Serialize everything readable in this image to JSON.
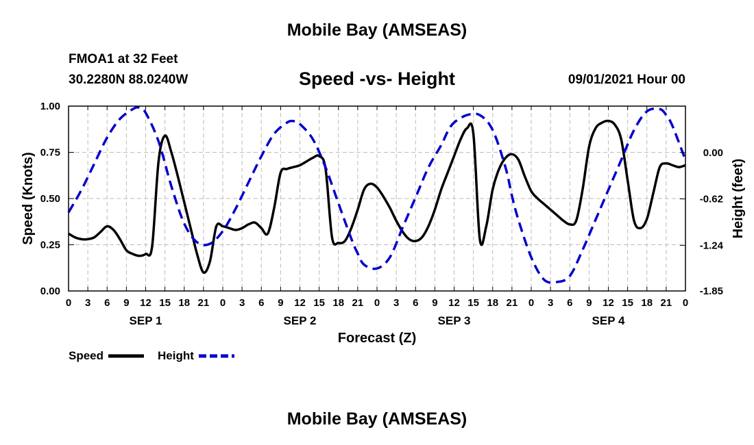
{
  "page": {
    "title_top": "Mobile Bay (AMSEAS)",
    "title_bottom": "Mobile Bay (AMSEAS)",
    "station": "FMOA1 at 32 Feet",
    "coordinates": "30.2280N  88.0240W",
    "datetime": "09/01/2021 Hour 00"
  },
  "chart_data": {
    "type": "line",
    "title": "Speed -vs- Height",
    "xlabel": "Forecast (Z)",
    "ylabel_left": "Speed (Knots)",
    "ylabel_right": "Height (feet)",
    "x_unit": "hours from 09/01/2021 00Z",
    "xlim": [
      0,
      96
    ],
    "ylim_left": [
      0,
      1
    ],
    "ylim_right": [
      -1.85,
      0.62
    ],
    "left_ticks": [
      "0.00",
      "0.25",
      "0.50",
      "0.75",
      "1.00"
    ],
    "left_tick_values": [
      0,
      0.25,
      0.5,
      0.75,
      1.0
    ],
    "right_ticks": [
      "0.00",
      "-0.62",
      "-1.24",
      "-1.85"
    ],
    "right_tick_values": [
      0.0,
      -0.62,
      -1.24,
      -1.85
    ],
    "x_tick_labels": [
      "0",
      "3",
      "6",
      "9",
      "12",
      "15",
      "18",
      "21",
      "0",
      "3",
      "6",
      "9",
      "12",
      "15",
      "18",
      "21",
      "0",
      "3",
      "6",
      "9",
      "12",
      "15",
      "18",
      "21",
      "0",
      "3",
      "6",
      "9",
      "12",
      "15",
      "18",
      "21",
      "0"
    ],
    "day_labels": [
      {
        "label": "SEP 1",
        "x": 12
      },
      {
        "label": "SEP 2",
        "x": 36
      },
      {
        "label": "SEP 3",
        "x": 60
      },
      {
        "label": "SEP 4",
        "x": 84
      }
    ],
    "grid": true,
    "legend": [
      {
        "name": "Speed",
        "color": "#000000",
        "style": "solid"
      },
      {
        "name": "Height",
        "color": "#0000cc",
        "style": "dashed"
      }
    ],
    "series": [
      {
        "name": "Speed",
        "axis": "left",
        "color": "#000000",
        "x": [
          0,
          1,
          2,
          3,
          4,
          5,
          6,
          7,
          8,
          9,
          10,
          11,
          12,
          13,
          14,
          15,
          16,
          17,
          18,
          19,
          20,
          21,
          22,
          23,
          24,
          25,
          26,
          27,
          28,
          29,
          30,
          31,
          32,
          33,
          34,
          35,
          36,
          37,
          38,
          39,
          40,
          41,
          42,
          43,
          44,
          45,
          46,
          47,
          48,
          49,
          50,
          51,
          52,
          53,
          54,
          55,
          56,
          57,
          58,
          59,
          60,
          61,
          62,
          63,
          64,
          65,
          66,
          67,
          68,
          69,
          70,
          71,
          72,
          73,
          74,
          75,
          76,
          77,
          78,
          79,
          80,
          81,
          82,
          83,
          84,
          85,
          86,
          87,
          88,
          89,
          90,
          91,
          92,
          93,
          94,
          95,
          96
        ],
        "y": [
          0.31,
          0.29,
          0.28,
          0.28,
          0.29,
          0.32,
          0.35,
          0.33,
          0.28,
          0.22,
          0.2,
          0.19,
          0.2,
          0.24,
          0.7,
          0.84,
          0.75,
          0.62,
          0.48,
          0.34,
          0.2,
          0.1,
          0.16,
          0.35,
          0.35,
          0.34,
          0.33,
          0.34,
          0.36,
          0.37,
          0.34,
          0.31,
          0.45,
          0.64,
          0.66,
          0.67,
          0.68,
          0.7,
          0.72,
          0.73,
          0.66,
          0.29,
          0.26,
          0.27,
          0.34,
          0.44,
          0.55,
          0.58,
          0.56,
          0.51,
          0.45,
          0.38,
          0.32,
          0.28,
          0.27,
          0.29,
          0.35,
          0.44,
          0.55,
          0.64,
          0.73,
          0.82,
          0.88,
          0.85,
          0.28,
          0.35,
          0.55,
          0.66,
          0.72,
          0.74,
          0.71,
          0.62,
          0.54,
          0.5,
          0.47,
          0.44,
          0.41,
          0.38,
          0.36,
          0.38,
          0.55,
          0.78,
          0.88,
          0.91,
          0.92,
          0.9,
          0.82,
          0.6,
          0.38,
          0.34,
          0.39,
          0.53,
          0.67,
          0.69,
          0.68,
          0.67,
          0.68
        ]
      },
      {
        "name": "Height",
        "axis": "right",
        "color": "#0000cc",
        "x": [
          0,
          2,
          4,
          6,
          8,
          10,
          11,
          12,
          14,
          16,
          18,
          20,
          22,
          24,
          26,
          28,
          30,
          32,
          34,
          35,
          36,
          38,
          40,
          42,
          44,
          45,
          46,
          48,
          50,
          52,
          54,
          56,
          58,
          59,
          60,
          62,
          64,
          66,
          68,
          69,
          70,
          72,
          74,
          76,
          78,
          80,
          82,
          84,
          86,
          88,
          90,
          92,
          93,
          94,
          96
        ],
        "y": [
          -0.8,
          -0.5,
          -0.15,
          0.2,
          0.45,
          0.58,
          0.6,
          0.53,
          0.15,
          -0.45,
          -0.95,
          -1.2,
          -1.22,
          -1.05,
          -0.75,
          -0.4,
          -0.05,
          0.25,
          0.4,
          0.42,
          0.38,
          0.18,
          -0.2,
          -0.68,
          -1.15,
          -1.35,
          -1.5,
          -1.55,
          -1.4,
          -1.0,
          -0.6,
          -0.2,
          0.1,
          0.28,
          0.4,
          0.5,
          0.5,
          0.3,
          -0.2,
          -0.58,
          -0.9,
          -1.4,
          -1.7,
          -1.73,
          -1.65,
          -1.3,
          -0.9,
          -0.5,
          -0.1,
          0.3,
          0.55,
          0.58,
          0.5,
          0.35,
          -0.1
        ]
      }
    ]
  }
}
